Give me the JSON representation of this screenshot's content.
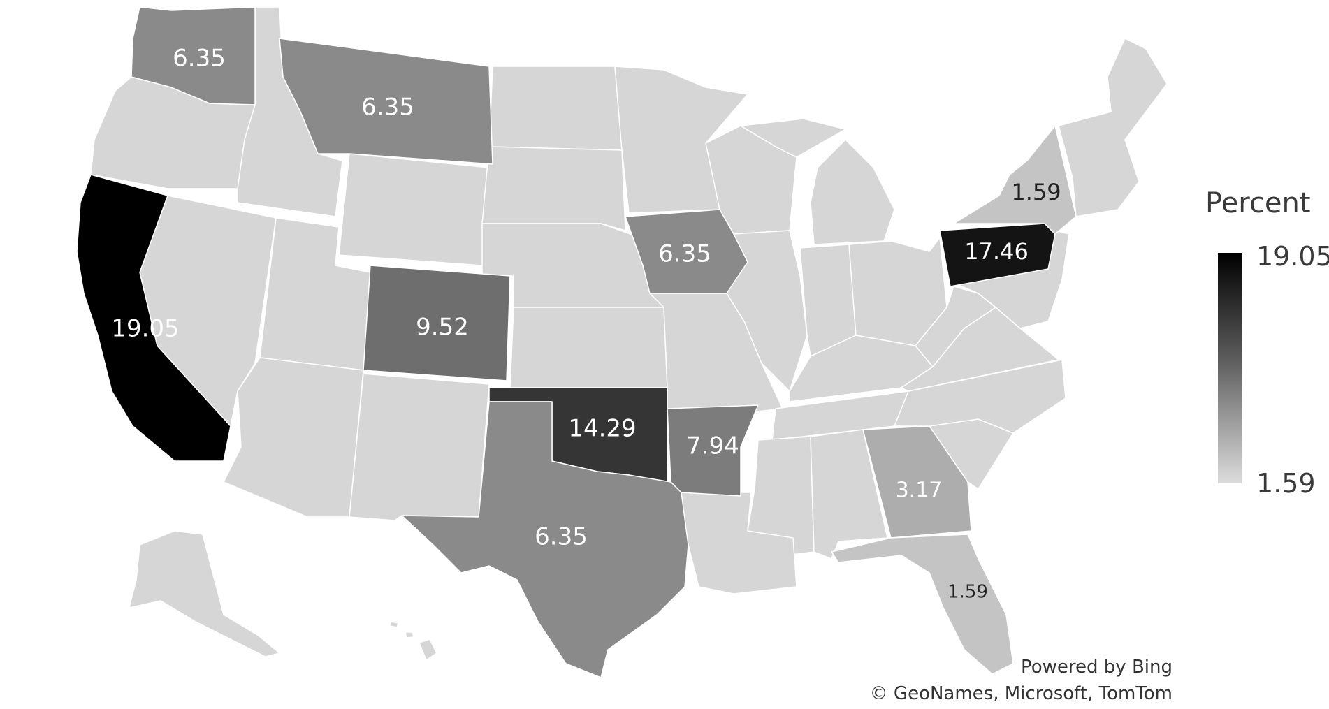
{
  "legend": {
    "title": "Percent",
    "max_label": "19.05",
    "min_label": "1.59",
    "max_color": "#000000",
    "min_color": "#dcdcdc"
  },
  "attribution": {
    "line1": "Powered by Bing",
    "line2": "© GeoNames, Microsoft, TomTom"
  },
  "states": [
    {
      "id": "washington",
      "value": "6.35",
      "fill": "#8a8a8a"
    },
    {
      "id": "montana",
      "value": "6.35",
      "fill": "#8a8a8a"
    },
    {
      "id": "california",
      "value": "19.05",
      "fill": "#000000"
    },
    {
      "id": "colorado",
      "value": "9.52",
      "fill": "#6e6e6e"
    },
    {
      "id": "iowa",
      "value": "6.35",
      "fill": "#8a8a8a"
    },
    {
      "id": "oklahoma",
      "value": "14.29",
      "fill": "#353535"
    },
    {
      "id": "arkansas",
      "value": "7.94",
      "fill": "#7c7c7c"
    },
    {
      "id": "texas",
      "value": "6.35",
      "fill": "#8a8a8a"
    },
    {
      "id": "georgia",
      "value": "3.17",
      "fill": "#adadad"
    },
    {
      "id": "florida",
      "value": "1.59",
      "fill": "#c4c4c4"
    },
    {
      "id": "pennsylvania",
      "value": "17.46",
      "fill": "#141414"
    },
    {
      "id": "new-york",
      "value": "1.59",
      "fill": "#c4c4c4"
    }
  ]
}
